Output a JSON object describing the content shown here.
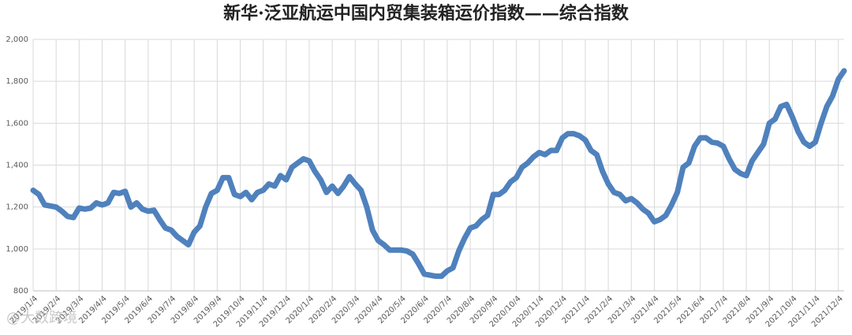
{
  "chart_data": {
    "type": "line",
    "title": "新华·泛亚航运中国内贸集装箱运价指数——综合指数",
    "watermark": "@大数跨境",
    "categories": [
      "2019/1/4",
      null,
      null,
      null,
      "2019/2/4",
      null,
      null,
      null,
      "2019/3/4",
      null,
      null,
      null,
      "2019/4/4",
      null,
      null,
      null,
      "2019/5/4",
      null,
      null,
      null,
      "2019/6/4",
      null,
      null,
      null,
      "2019/7/4",
      null,
      null,
      null,
      "2019/8/4",
      null,
      null,
      null,
      "2019/9/4",
      null,
      null,
      null,
      "2019/10/4",
      null,
      null,
      null,
      "2019/11/4",
      null,
      null,
      null,
      "2019/12/4",
      null,
      null,
      null,
      "2020/1/4",
      null,
      null,
      null,
      "2020/2/4",
      null,
      null,
      null,
      "2020/3/4",
      null,
      null,
      null,
      "2020/4/4",
      null,
      null,
      null,
      "2020/5/4",
      null,
      null,
      null,
      "2020/6/4",
      null,
      null,
      null,
      "2020/7/4",
      null,
      null,
      null,
      "2020/8/4",
      null,
      null,
      null,
      "2020/9/4",
      null,
      null,
      null,
      "2020/10/4",
      null,
      null,
      null,
      "2020/11/4",
      null,
      null,
      null,
      "2020/12/4",
      null,
      null,
      null,
      "2021/1/4",
      null,
      null,
      null,
      "2021/2/4",
      null,
      null,
      null,
      "2021/3/4",
      null,
      null,
      null,
      "2021/4/4",
      null,
      null,
      null,
      "2021/5/4",
      null,
      null,
      null,
      "2021/6/4",
      null,
      null,
      null,
      "2021/7/4",
      null,
      null,
      null,
      "2021/8/4",
      null,
      null,
      null,
      "2021/9/4",
      null,
      null,
      null,
      "2021/10/4",
      null,
      null,
      null,
      "2021/11/4",
      null,
      null,
      null,
      "2021/12/4",
      null
    ],
    "series": [
      {
        "name": "综合指数",
        "color": "#4f81bd",
        "values": [
          1280,
          1260,
          1210,
          1205,
          1200,
          1180,
          1155,
          1150,
          1195,
          1190,
          1195,
          1220,
          1210,
          1220,
          1270,
          1265,
          1275,
          1200,
          1220,
          1190,
          1180,
          1185,
          1140,
          1100,
          1090,
          1060,
          1040,
          1020,
          1080,
          1110,
          1200,
          1265,
          1280,
          1340,
          1340,
          1260,
          1250,
          1270,
          1235,
          1270,
          1280,
          1310,
          1300,
          1350,
          1330,
          1390,
          1410,
          1430,
          1420,
          1370,
          1330,
          1270,
          1300,
          1265,
          1300,
          1345,
          1310,
          1280,
          1200,
          1090,
          1040,
          1020,
          995,
          995,
          995,
          990,
          975,
          930,
          880,
          875,
          870,
          870,
          895,
          910,
          990,
          1050,
          1100,
          1110,
          1140,
          1160,
          1260,
          1260,
          1280,
          1320,
          1340,
          1390,
          1410,
          1440,
          1460,
          1450,
          1470,
          1470,
          1530,
          1550,
          1550,
          1540,
          1520,
          1470,
          1450,
          1370,
          1310,
          1270,
          1260,
          1230,
          1240,
          1220,
          1190,
          1170,
          1130,
          1140,
          1160,
          1210,
          1270,
          1390,
          1410,
          1490,
          1530,
          1530,
          1510,
          1505,
          1490,
          1430,
          1380,
          1360,
          1350,
          1420,
          1460,
          1500,
          1600,
          1620,
          1680,
          1690,
          1630,
          1560,
          1510,
          1490,
          1510,
          1600,
          1680,
          1730,
          1810,
          1850
        ]
      }
    ],
    "ylim": [
      800,
      2000
    ],
    "yticks": [
      {
        "value": 800,
        "label": "800"
      },
      {
        "value": 1000,
        "label": "1,000"
      },
      {
        "value": 1200,
        "label": "1,200"
      },
      {
        "value": 1400,
        "label": "1,400"
      },
      {
        "value": 1600,
        "label": "1,600"
      },
      {
        "value": 1800,
        "label": "1,800"
      },
      {
        "value": 2000,
        "label": "2,000"
      }
    ],
    "grid": true
  }
}
